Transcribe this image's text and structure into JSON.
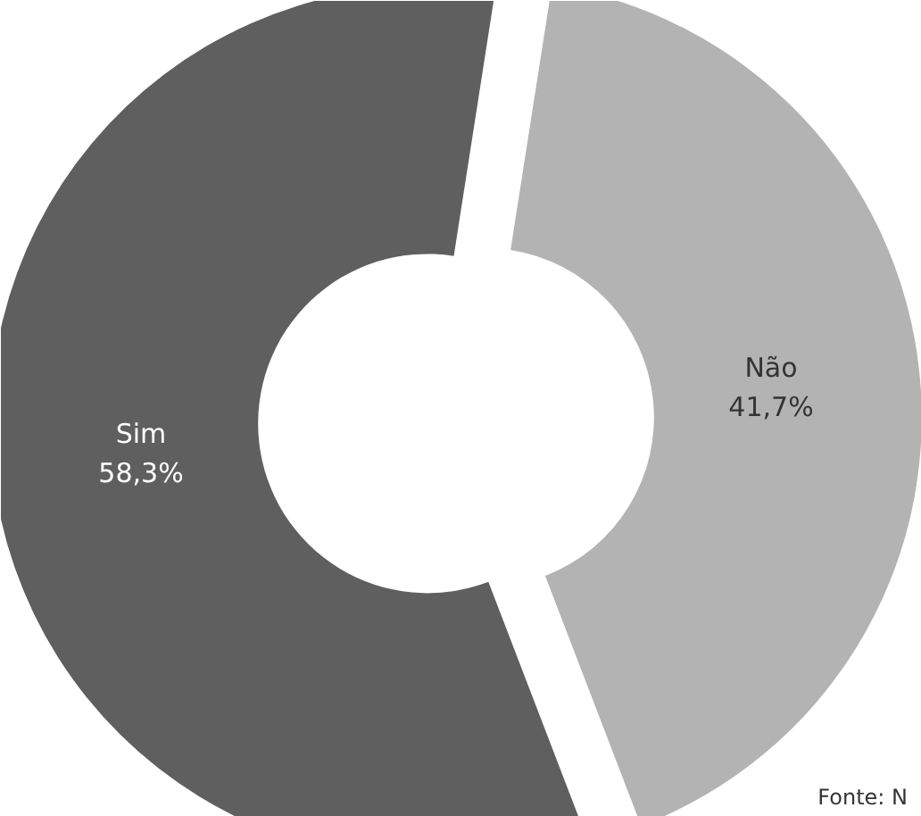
{
  "chart_data": {
    "type": "donut",
    "categories": [
      "Sim",
      "Não"
    ],
    "values": [
      58.3,
      41.7
    ],
    "colors": [
      "#5f5f5f",
      "#b3b3b3"
    ],
    "value_labels": [
      "58,3%",
      "41,7%"
    ],
    "annotations": [
      "Fonte: N"
    ]
  }
}
